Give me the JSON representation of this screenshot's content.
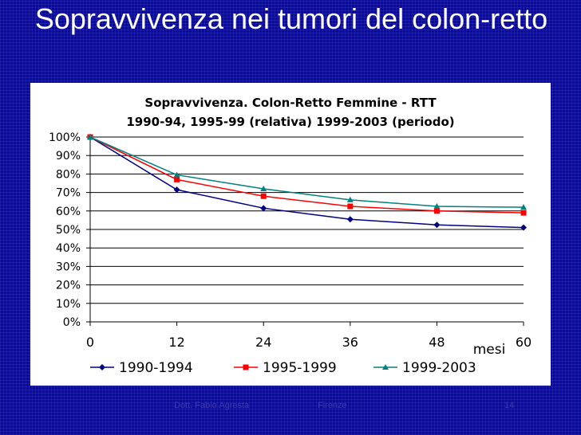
{
  "slide": {
    "title": "Sopravvivenza nei tumori del colon-retto"
  },
  "footer": {
    "author": "Dott. Fabio Agresta",
    "place": "Firenze",
    "page": "14"
  },
  "colors": {
    "background": "#0a0a9a",
    "series_1990_1994": "#000080",
    "series_1995_1999": "#ff0000",
    "series_1999_2003": "#008080"
  },
  "chart_data": {
    "type": "line",
    "title": "Sopravvivenza. Colon-Retto Femmine - RTT",
    "subtitle": "1990-94, 1995-99 (relativa) 1999-2003 (periodo)",
    "xlabel": "mesi",
    "ylabel": "",
    "x": [
      0,
      12,
      24,
      36,
      48,
      60
    ],
    "xlim": [
      0,
      60
    ],
    "ylim": [
      0,
      100
    ],
    "y_tick_labels": [
      "0%",
      "10%",
      "20%",
      "30%",
      "40%",
      "50%",
      "60%",
      "70%",
      "80%",
      "90%",
      "100%"
    ],
    "x_tick_labels": [
      "0",
      "12",
      "24",
      "36",
      "48",
      "60"
    ],
    "grid": "horizontal",
    "legend_position": "bottom",
    "series": [
      {
        "name": "1990-1994",
        "color": "#000080",
        "marker": "diamond",
        "values": [
          100,
          71.5,
          61.5,
          55.5,
          52.5,
          51
        ]
      },
      {
        "name": "1995-1999",
        "color": "#ff0000",
        "marker": "square",
        "values": [
          100,
          77,
          68,
          62.5,
          60,
          59
        ]
      },
      {
        "name": "1999-2003",
        "color": "#008080",
        "marker": "triangle",
        "values": [
          100,
          79.5,
          72,
          66,
          62.5,
          62
        ]
      }
    ]
  }
}
